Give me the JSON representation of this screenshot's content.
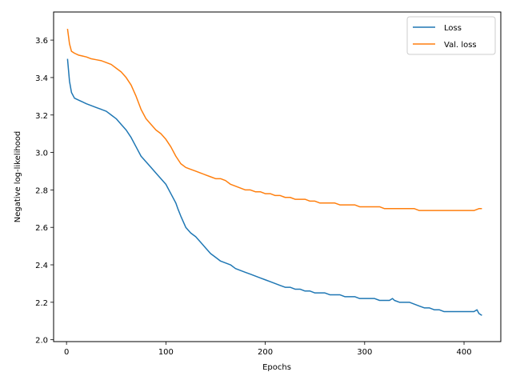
{
  "chart_data": {
    "type": "line",
    "xlabel": "Epochs",
    "ylabel": "Negative log-likelihood",
    "xlim": [
      -13,
      437
    ],
    "ylim": [
      1.99,
      3.75
    ],
    "xticks": [
      0,
      100,
      200,
      300,
      400
    ],
    "yticks": [
      2.0,
      2.2,
      2.4,
      2.6,
      2.8,
      3.0,
      3.2,
      3.4,
      3.6
    ],
    "ytick_labels": [
      "2.0",
      "2.2",
      "2.4",
      "2.6",
      "2.8",
      "3.0",
      "3.2",
      "3.4",
      "3.6"
    ],
    "grid": false,
    "legend_position": "top-right",
    "series": [
      {
        "name": "Loss",
        "color": "#1f77b4",
        "x": [
          1,
          3,
          5,
          8,
          12,
          16,
          20,
          25,
          30,
          35,
          40,
          45,
          50,
          55,
          60,
          65,
          70,
          75,
          80,
          85,
          90,
          95,
          100,
          105,
          110,
          112,
          115,
          120,
          125,
          130,
          135,
          140,
          145,
          150,
          155,
          160,
          165,
          170,
          175,
          180,
          185,
          190,
          195,
          200,
          205,
          210,
          215,
          220,
          225,
          230,
          235,
          240,
          245,
          250,
          255,
          260,
          265,
          270,
          275,
          280,
          285,
          290,
          295,
          300,
          305,
          310,
          315,
          320,
          325,
          328,
          330,
          335,
          340,
          345,
          350,
          355,
          360,
          365,
          370,
          375,
          380,
          385,
          390,
          395,
          400,
          405,
          410,
          413,
          415,
          418
        ],
        "values": [
          3.5,
          3.38,
          3.32,
          3.29,
          3.28,
          3.27,
          3.26,
          3.25,
          3.24,
          3.23,
          3.22,
          3.2,
          3.18,
          3.15,
          3.12,
          3.08,
          3.03,
          2.98,
          2.95,
          2.92,
          2.89,
          2.86,
          2.83,
          2.78,
          2.73,
          2.7,
          2.66,
          2.6,
          2.57,
          2.55,
          2.52,
          2.49,
          2.46,
          2.44,
          2.42,
          2.41,
          2.4,
          2.38,
          2.37,
          2.36,
          2.35,
          2.34,
          2.33,
          2.32,
          2.31,
          2.3,
          2.29,
          2.28,
          2.28,
          2.27,
          2.27,
          2.26,
          2.26,
          2.25,
          2.25,
          2.25,
          2.24,
          2.24,
          2.24,
          2.23,
          2.23,
          2.23,
          2.22,
          2.22,
          2.22,
          2.22,
          2.21,
          2.21,
          2.21,
          2.22,
          2.21,
          2.2,
          2.2,
          2.2,
          2.19,
          2.18,
          2.17,
          2.17,
          2.16,
          2.16,
          2.15,
          2.15,
          2.15,
          2.15,
          2.15,
          2.15,
          2.15,
          2.16,
          2.14,
          2.13
        ]
      },
      {
        "name": "Val. loss",
        "color": "#ff7f0e",
        "x": [
          1,
          3,
          5,
          8,
          12,
          16,
          20,
          25,
          30,
          35,
          40,
          45,
          50,
          55,
          60,
          65,
          70,
          75,
          80,
          85,
          90,
          95,
          100,
          105,
          110,
          115,
          120,
          125,
          130,
          135,
          140,
          145,
          150,
          155,
          160,
          165,
          170,
          175,
          180,
          185,
          190,
          195,
          200,
          205,
          210,
          215,
          220,
          225,
          230,
          235,
          240,
          245,
          250,
          255,
          260,
          265,
          270,
          275,
          280,
          285,
          290,
          295,
          300,
          305,
          310,
          315,
          320,
          325,
          330,
          335,
          340,
          345,
          350,
          355,
          360,
          365,
          370,
          375,
          380,
          385,
          390,
          395,
          400,
          405,
          410,
          415,
          418
        ],
        "values": [
          3.66,
          3.58,
          3.54,
          3.53,
          3.52,
          3.515,
          3.51,
          3.5,
          3.495,
          3.49,
          3.48,
          3.47,
          3.45,
          3.43,
          3.4,
          3.36,
          3.3,
          3.23,
          3.18,
          3.15,
          3.12,
          3.1,
          3.07,
          3.03,
          2.98,
          2.94,
          2.92,
          2.91,
          2.9,
          2.89,
          2.88,
          2.87,
          2.86,
          2.86,
          2.85,
          2.83,
          2.82,
          2.81,
          2.8,
          2.8,
          2.79,
          2.79,
          2.78,
          2.78,
          2.77,
          2.77,
          2.76,
          2.76,
          2.75,
          2.75,
          2.75,
          2.74,
          2.74,
          2.73,
          2.73,
          2.73,
          2.73,
          2.72,
          2.72,
          2.72,
          2.72,
          2.71,
          2.71,
          2.71,
          2.71,
          2.71,
          2.7,
          2.7,
          2.7,
          2.7,
          2.7,
          2.7,
          2.7,
          2.69,
          2.69,
          2.69,
          2.69,
          2.69,
          2.69,
          2.69,
          2.69,
          2.69,
          2.69,
          2.69,
          2.69,
          2.7,
          2.7
        ]
      }
    ]
  }
}
